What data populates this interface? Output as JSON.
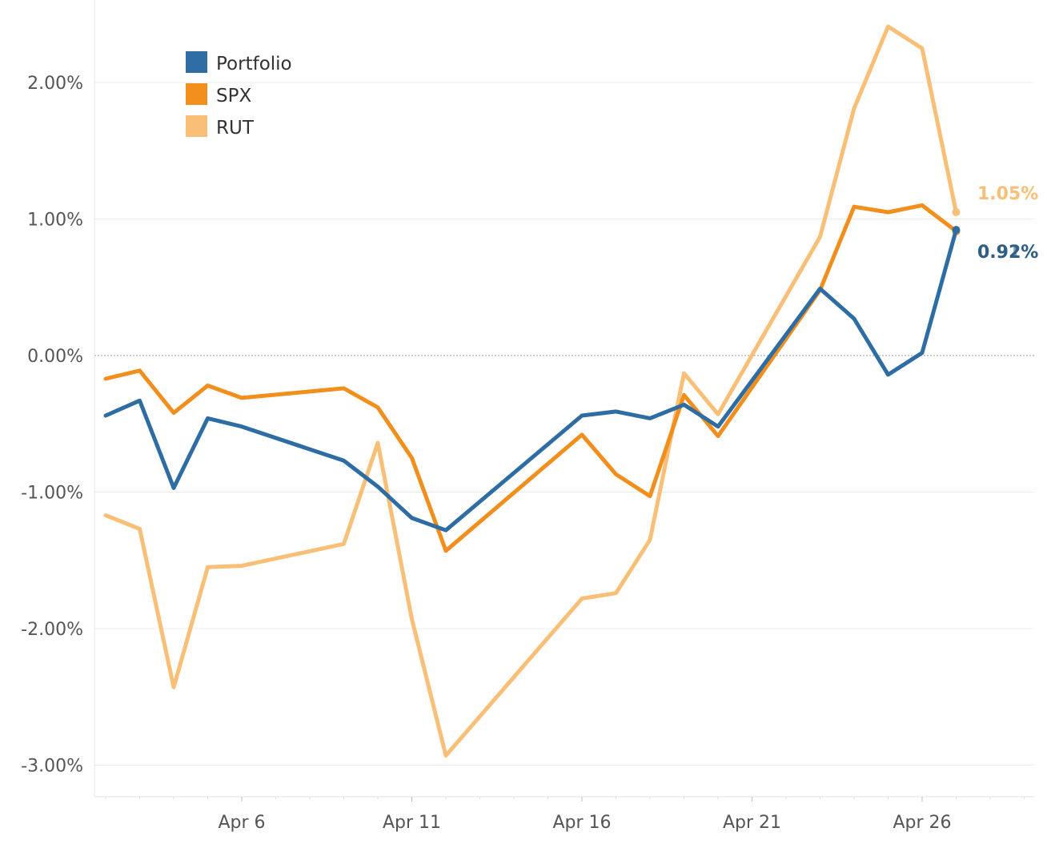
{
  "chart_data": {
    "type": "line",
    "title": "",
    "xlabel": "",
    "ylabel": "",
    "x": [
      "Apr 2",
      "Apr 3",
      "Apr 4",
      "Apr 5",
      "Apr 6",
      "Apr 9",
      "Apr 10",
      "Apr 11",
      "Apr 12",
      "Apr 13",
      "Apr 16",
      "Apr 17",
      "Apr 18",
      "Apr 19",
      "Apr 20",
      "Apr 23",
      "Apr 24",
      "Apr 25",
      "Apr 26",
      "Apr 27",
      "Apr 28"
    ],
    "x_tick_labels": [
      "Apr 6",
      "Apr 11",
      "Apr 16",
      "Apr 21",
      "Apr 26"
    ],
    "y_tick_labels": [
      "2.00%",
      "1.00%",
      "0.00%",
      "-1.00%",
      "-2.00%",
      "-3.00%"
    ],
    "y_ticks": [
      2,
      1,
      0,
      -1,
      -2,
      -3
    ],
    "ylim": [
      -3.25,
      2.6
    ],
    "grid": true,
    "legend_position": "top-left",
    "series": [
      {
        "name": "Portfolio",
        "color": "#2e6da4",
        "points": [
          {
            "x": "Apr 2",
            "y": -0.44
          },
          {
            "x": "Apr 3",
            "y": -0.33
          },
          {
            "x": "Apr 4",
            "y": -0.97
          },
          {
            "x": "Apr 5",
            "y": -0.46
          },
          {
            "x": "Apr 6",
            "y": -0.52
          },
          {
            "x": "Apr 9",
            "y": -0.77
          },
          {
            "x": "Apr 10",
            "y": -0.96
          },
          {
            "x": "Apr 11",
            "y": -1.19
          },
          {
            "x": "Apr 12",
            "y": -1.28
          },
          {
            "x": "Apr 16",
            "y": -0.44
          },
          {
            "x": "Apr 17",
            "y": -0.41
          },
          {
            "x": "Apr 18",
            "y": -0.46
          },
          {
            "x": "Apr 19",
            "y": -0.36
          },
          {
            "x": "Apr 20",
            "y": -0.52
          },
          {
            "x": "Apr 23",
            "y": 0.49
          },
          {
            "x": "Apr 24",
            "y": 0.27
          },
          {
            "x": "Apr 25",
            "y": -0.14
          },
          {
            "x": "Apr 26",
            "y": 0.02
          },
          {
            "x": "Apr 27",
            "y": 0.92
          }
        ],
        "end_label": "0.92%"
      },
      {
        "name": "SPX",
        "color": "#f28e1c",
        "points": [
          {
            "x": "Apr 2",
            "y": -0.17
          },
          {
            "x": "Apr 3",
            "y": -0.11
          },
          {
            "x": "Apr 4",
            "y": -0.42
          },
          {
            "x": "Apr 5",
            "y": -0.22
          },
          {
            "x": "Apr 6",
            "y": -0.31
          },
          {
            "x": "Apr 9",
            "y": -0.24
          },
          {
            "x": "Apr 10",
            "y": -0.38
          },
          {
            "x": "Apr 11",
            "y": -0.75
          },
          {
            "x": "Apr 12",
            "y": -1.43
          },
          {
            "x": "Apr 16",
            "y": -0.58
          },
          {
            "x": "Apr 17",
            "y": -0.87
          },
          {
            "x": "Apr 18",
            "y": -1.03
          },
          {
            "x": "Apr 19",
            "y": -0.29
          },
          {
            "x": "Apr 20",
            "y": -0.59
          },
          {
            "x": "Apr 23",
            "y": 0.48
          },
          {
            "x": "Apr 24",
            "y": 1.09
          },
          {
            "x": "Apr 25",
            "y": 1.05
          },
          {
            "x": "Apr 26",
            "y": 1.1
          },
          {
            "x": "Apr 27",
            "y": 0.91
          }
        ],
        "end_label": "0.91%"
      },
      {
        "name": "RUT",
        "color": "#f9bf76",
        "points": [
          {
            "x": "Apr 2",
            "y": -1.17
          },
          {
            "x": "Apr 3",
            "y": -1.27
          },
          {
            "x": "Apr 4",
            "y": -2.43
          },
          {
            "x": "Apr 5",
            "y": -1.55
          },
          {
            "x": "Apr 6",
            "y": -1.54
          },
          {
            "x": "Apr 9",
            "y": -1.38
          },
          {
            "x": "Apr 10",
            "y": -0.64
          },
          {
            "x": "Apr 11",
            "y": -1.93
          },
          {
            "x": "Apr 12",
            "y": -2.93
          },
          {
            "x": "Apr 16",
            "y": -1.78
          },
          {
            "x": "Apr 17",
            "y": -1.74
          },
          {
            "x": "Apr 18",
            "y": -1.35
          },
          {
            "x": "Apr 19",
            "y": -0.13
          },
          {
            "x": "Apr 20",
            "y": -0.43
          },
          {
            "x": "Apr 23",
            "y": 0.87
          },
          {
            "x": "Apr 24",
            "y": 1.81
          },
          {
            "x": "Apr 25",
            "y": 2.41
          },
          {
            "x": "Apr 26",
            "y": 2.25
          },
          {
            "x": "Apr 27",
            "y": 1.05
          }
        ],
        "end_label": "1.05%"
      }
    ]
  }
}
